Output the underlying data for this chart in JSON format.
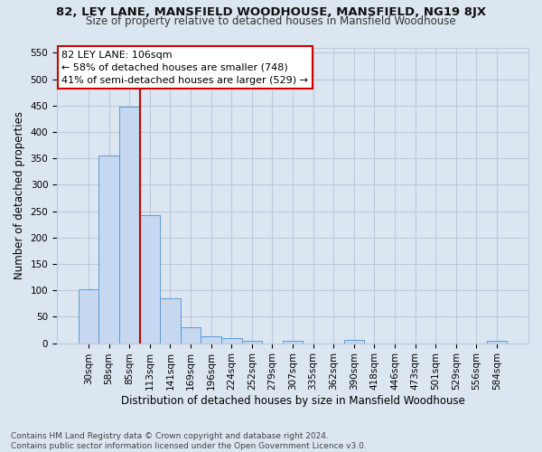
{
  "title1": "82, LEY LANE, MANSFIELD WOODHOUSE, MANSFIELD, NG19 8JX",
  "title2": "Size of property relative to detached houses in Mansfield Woodhouse",
  "xlabel": "Distribution of detached houses by size in Mansfield Woodhouse",
  "ylabel": "Number of detached properties",
  "footnote": "Contains HM Land Registry data © Crown copyright and database right 2024.\nContains public sector information licensed under the Open Government Licence v3.0.",
  "categories": [
    "30sqm",
    "58sqm",
    "85sqm",
    "113sqm",
    "141sqm",
    "169sqm",
    "196sqm",
    "224sqm",
    "252sqm",
    "279sqm",
    "307sqm",
    "335sqm",
    "362sqm",
    "390sqm",
    "418sqm",
    "446sqm",
    "473sqm",
    "501sqm",
    "529sqm",
    "556sqm",
    "584sqm"
  ],
  "values": [
    102,
    356,
    448,
    242,
    85,
    30,
    13,
    9,
    5,
    0,
    5,
    0,
    0,
    6,
    0,
    0,
    0,
    0,
    0,
    0,
    5
  ],
  "bar_color": "#c5d8f0",
  "bar_edge_color": "#5b9bd5",
  "grid_color": "#c0c8d8",
  "vline_x_idx": 2,
  "vline_color": "#cc0000",
  "annotation_text": "82 LEY LANE: 106sqm\n← 58% of detached houses are smaller (748)\n41% of semi-detached houses are larger (529) →",
  "annotation_box_color": "#ffffff",
  "annotation_box_edge": "#cc0000",
  "ylim": [
    0,
    560
  ],
  "yticks": [
    0,
    50,
    100,
    150,
    200,
    250,
    300,
    350,
    400,
    450,
    500,
    550
  ],
  "bg_color": "#dce6f0",
  "title1_fontsize": 9.5,
  "title2_fontsize": 8.5,
  "ylabel_fontsize": 8.5,
  "xlabel_fontsize": 8.5,
  "tick_fontsize": 7.5,
  "footnote_fontsize": 6.5
}
